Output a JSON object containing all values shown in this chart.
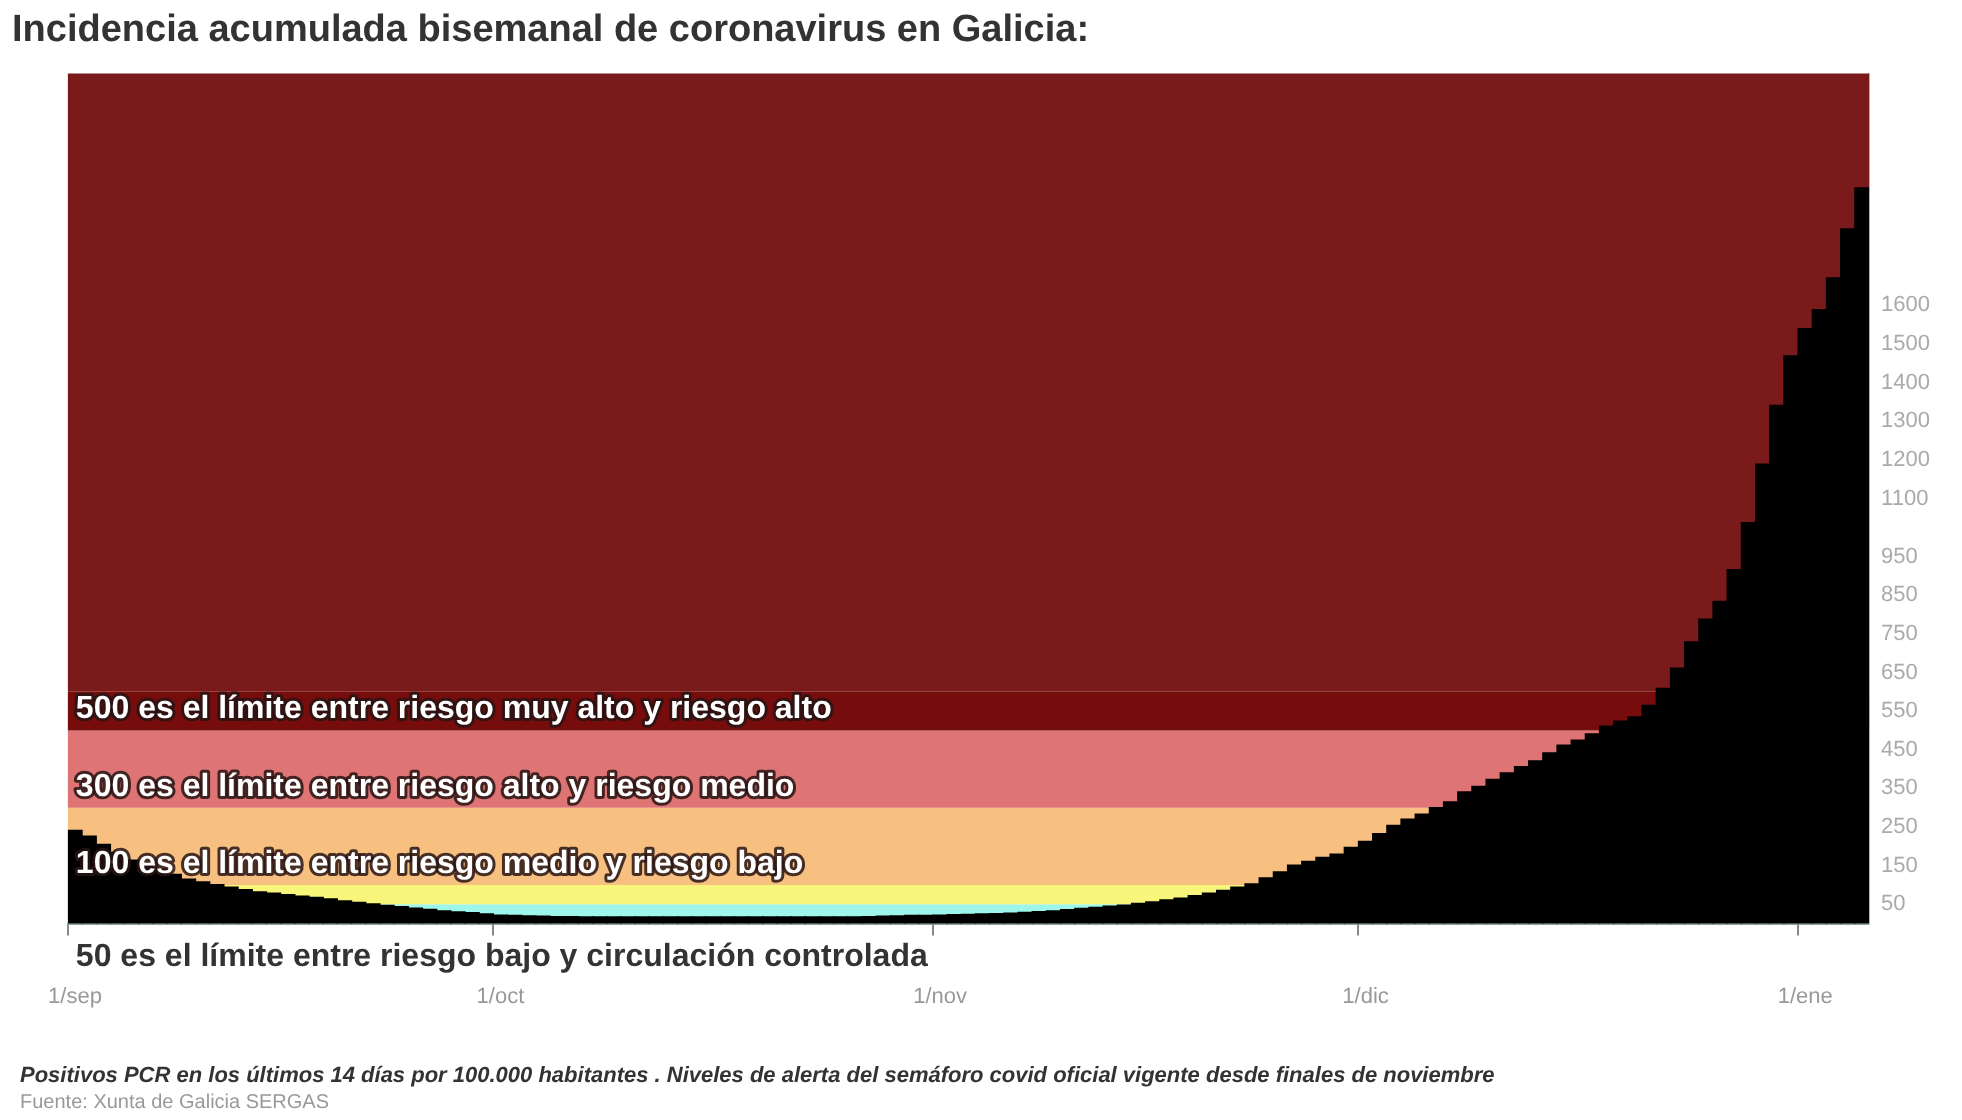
{
  "chart_data": {
    "type": "bar",
    "title": "Incidencia acumulada bisemanal de coronavirus en Galicia:",
    "categories": [
      "1/sep",
      null,
      null,
      null,
      null,
      null,
      null,
      null,
      null,
      null,
      null,
      null,
      null,
      null,
      null,
      null,
      null,
      null,
      null,
      null,
      null,
      null,
      null,
      null,
      null,
      null,
      null,
      null,
      null,
      null,
      "1/oct",
      null,
      null,
      null,
      null,
      null,
      null,
      null,
      null,
      null,
      null,
      null,
      null,
      null,
      null,
      null,
      null,
      null,
      null,
      null,
      null,
      null,
      null,
      null,
      null,
      null,
      null,
      null,
      null,
      null,
      null,
      "1/nov",
      null,
      null,
      null,
      null,
      null,
      null,
      null,
      null,
      null,
      null,
      null,
      null,
      null,
      null,
      null,
      null,
      null,
      null,
      null,
      null,
      null,
      null,
      null,
      null,
      null,
      null,
      null,
      null,
      null,
      "1/dic",
      null,
      null,
      null,
      null,
      null,
      null,
      null,
      null,
      null,
      null,
      null,
      null,
      null,
      null,
      null,
      null,
      null,
      null,
      null,
      null,
      null,
      null,
      null,
      null,
      null,
      null,
      null,
      null,
      null,
      null,
      "1/ene",
      null,
      null,
      null,
      null
    ],
    "values": [
      241,
      226,
      205,
      184,
      164,
      151,
      140,
      127,
      115,
      108,
      101,
      94,
      88,
      82,
      79,
      75,
      71,
      68,
      64,
      59,
      55,
      51,
      47,
      44,
      40,
      37,
      33,
      30,
      28,
      25,
      22,
      21,
      20,
      19,
      18,
      18,
      17,
      17,
      17,
      17,
      17,
      17,
      17,
      17,
      17,
      17,
      17,
      17,
      17,
      17,
      17,
      17,
      17,
      17,
      17,
      17,
      18,
      19,
      20,
      21,
      21,
      22,
      23,
      24,
      25,
      26,
      27,
      29,
      31,
      33,
      36,
      39,
      42,
      45,
      48,
      52,
      56,
      61,
      66,
      72,
      79,
      86,
      94,
      103,
      118,
      134,
      151,
      161,
      171,
      180,
      197,
      213,
      233,
      254,
      270,
      283,
      300,
      315,
      341,
      355,
      373,
      390,
      406,
      421,
      442,
      462,
      475,
      491,
      511,
      524,
      535,
      565,
      609,
      661,
      729,
      788,
      834,
      916,
      1038,
      1189,
      1341,
      1469,
      1540,
      1589,
      1671,
      1798,
      1904
    ],
    "color": "#000000",
    "ylim": [
      0,
      2200
    ],
    "yticks": [
      50,
      150,
      250,
      350,
      450,
      550,
      650,
      750,
      850,
      950,
      1100,
      1200,
      1300,
      1400,
      1500,
      1600
    ],
    "bands": [
      {
        "axis": "y",
        "from": 0,
        "to": 50,
        "color": "#9ef5ea"
      },
      {
        "axis": "y",
        "from": 50,
        "to": 100,
        "color": "#f7f57a",
        "label": "50 es el límite entre riesgo bajo y circulación controlada"
      },
      {
        "axis": "y",
        "from": 100,
        "to": 300,
        "color": "#f7c080",
        "label": "100 es el límite entre riesgo medio y riesgo bajo"
      },
      {
        "axis": "y",
        "from": 300,
        "to": 500,
        "color": "#de7574",
        "label": "300 es el límite entre riesgo alto y riesgo medio"
      },
      {
        "axis": "y",
        "from": 500,
        "to": 600,
        "color": "#760c0c",
        "label": "500 es el límite entre riesgo muy alto y riesgo alto"
      },
      {
        "axis": "y",
        "from": 600,
        "to": 2200,
        "color": "#7b1a1a"
      }
    ],
    "annotations": [
      "Positivos PCR en los últimos 14 días por 100.000 habitantes . Niveles de alerta del semáforo covid oficial vigente desde finales de noviembre",
      "Fuente: Xunta de Galicia SERGAS"
    ]
  }
}
